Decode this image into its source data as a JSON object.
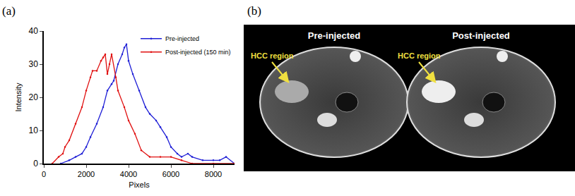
{
  "chart_data": {
    "type": "line",
    "x_label": "Pixels",
    "y_label": "Intensity",
    "xlim": [
      0,
      9000
    ],
    "xticks": [
      0,
      2000,
      4000,
      6000,
      8000
    ],
    "ylim": [
      0,
      40
    ],
    "yticks": [
      0,
      10,
      20,
      30,
      40
    ],
    "grid": false,
    "legend": "top-right",
    "series": [
      {
        "name": "Pre-injected",
        "color": "#1f1fd6",
        "marker": "circle",
        "line_style": "solid",
        "x": [
          800,
          1200,
          1500,
          1800,
          2000,
          2200,
          2500,
          2800,
          3000,
          3200,
          3300,
          3500,
          3700,
          3800,
          3900,
          4000,
          4200,
          4500,
          4800,
          5000,
          5300,
          5500,
          5800,
          6000,
          6300,
          6500,
          6800,
          7000,
          7500,
          8000,
          8300,
          8600,
          9000
        ],
        "values": [
          0,
          1,
          2,
          3,
          5,
          8,
          12,
          17,
          22,
          24,
          25,
          30,
          33,
          35,
          36,
          31,
          27,
          22,
          17,
          15,
          13,
          11,
          8,
          5,
          3,
          2,
          3,
          2,
          1,
          1,
          1,
          2,
          0
        ]
      },
      {
        "name": "Post-injected (150 min)",
        "color": "#e01010",
        "marker": "circle",
        "line_style": "solid",
        "x": [
          400,
          700,
          900,
          1000,
          1200,
          1500,
          1800,
          2000,
          2200,
          2300,
          2500,
          2700,
          2800,
          2900,
          3000,
          3100,
          3200,
          3400,
          3500,
          3800,
          4000,
          4300,
          4600,
          5000,
          5500,
          6000,
          6500,
          7000,
          8000,
          9000
        ],
        "values": [
          0,
          2,
          3,
          5,
          7,
          12,
          17,
          22,
          26,
          28,
          28,
          31,
          32,
          33,
          27,
          30,
          33,
          26,
          22,
          17,
          13,
          9,
          4,
          2,
          2,
          2,
          1,
          0,
          0,
          0
        ]
      }
    ]
  },
  "panel_labels": [
    "(a)",
    "(b)"
  ],
  "image_panel": {
    "titles": [
      "Pre-injected",
      "Post-injected"
    ],
    "annotation": "HCC region"
  }
}
